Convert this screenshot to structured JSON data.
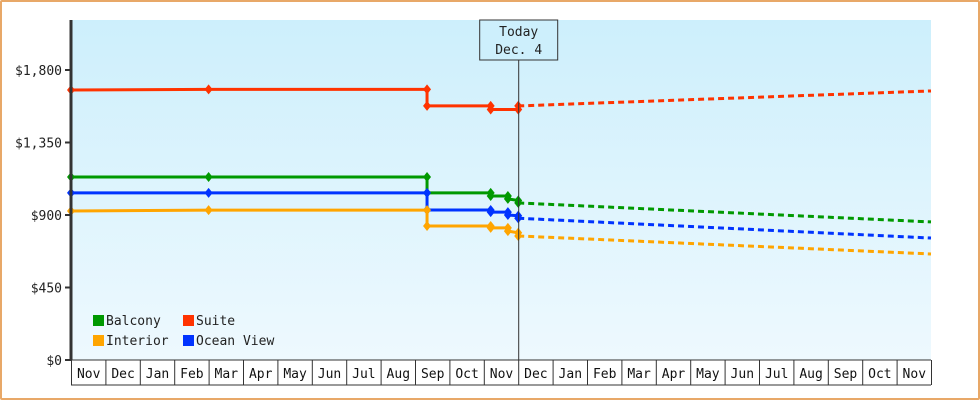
{
  "chart_data": {
    "type": "line",
    "title": "",
    "xlabel": "",
    "ylabel": "",
    "ylim": [
      0,
      2000
    ],
    "y_ticks": [
      "$0",
      "$450",
      "$900",
      "$1,350",
      "$1,800"
    ],
    "y_tick_values": [
      0,
      450,
      900,
      1350,
      1800
    ],
    "x_months": [
      "Nov",
      "Dec",
      "Jan",
      "Feb",
      "Mar",
      "Apr",
      "May",
      "Jun",
      "Jul",
      "Aug",
      "Sep",
      "Oct",
      "Nov",
      "Dec",
      "Jan",
      "Feb",
      "Mar",
      "Apr",
      "May",
      "Jun",
      "Jul",
      "Aug",
      "Sep",
      "Oct",
      "Nov"
    ],
    "today_marker": {
      "line1": "Today",
      "line2": "Dec. 4",
      "month_index": 13.0
    },
    "legend": [
      {
        "name": "Balcony",
        "color": "#009900"
      },
      {
        "name": "Suite",
        "color": "#ff3300"
      },
      {
        "name": "Interior",
        "color": "#ffa500"
      },
      {
        "name": "Ocean View",
        "color": "#0033ff"
      }
    ],
    "series": [
      {
        "name": "Suite",
        "color": "#ff3300",
        "historical": [
          [
            0,
            1676
          ],
          [
            4.0,
            1680
          ],
          [
            10.35,
            1680
          ],
          [
            10.35,
            1577
          ],
          [
            12.2,
            1577
          ],
          [
            12.2,
            1555
          ],
          [
            13.0,
            1555
          ],
          [
            13.0,
            1577
          ]
        ],
        "forecast": [
          [
            13.0,
            1577
          ],
          [
            25,
            1670
          ]
        ]
      },
      {
        "name": "Balcony",
        "color": "#009900",
        "historical": [
          [
            0,
            1136
          ],
          [
            4.0,
            1136
          ],
          [
            10.35,
            1136
          ],
          [
            10.35,
            1037
          ],
          [
            12.2,
            1037
          ],
          [
            12.2,
            1018
          ],
          [
            12.7,
            1018
          ],
          [
            12.7,
            1000
          ],
          [
            13.0,
            990
          ],
          [
            13.0,
            975
          ]
        ],
        "forecast": [
          [
            13.0,
            975
          ],
          [
            25,
            857
          ]
        ]
      },
      {
        "name": "Ocean View",
        "color": "#0033ff",
        "historical": [
          [
            0,
            1037
          ],
          [
            4.0,
            1037
          ],
          [
            10.35,
            1037
          ],
          [
            10.35,
            931
          ],
          [
            12.2,
            931
          ],
          [
            12.2,
            918
          ],
          [
            12.7,
            918
          ],
          [
            12.7,
            900
          ],
          [
            13.0,
            895
          ],
          [
            13.0,
            880
          ]
        ],
        "forecast": [
          [
            13.0,
            880
          ],
          [
            25,
            757
          ]
        ]
      },
      {
        "name": "Interior",
        "color": "#ffa500",
        "historical": [
          [
            0,
            925
          ],
          [
            4.0,
            930
          ],
          [
            10.35,
            930
          ],
          [
            10.35,
            832
          ],
          [
            12.2,
            832
          ],
          [
            12.2,
            820
          ],
          [
            12.7,
            820
          ],
          [
            12.7,
            800
          ],
          [
            13.0,
            790
          ],
          [
            13.0,
            770
          ]
        ],
        "forecast": [
          [
            13.0,
            770
          ],
          [
            25,
            658
          ]
        ]
      }
    ],
    "grid": false,
    "legend_position": "lower-left inside plot"
  }
}
